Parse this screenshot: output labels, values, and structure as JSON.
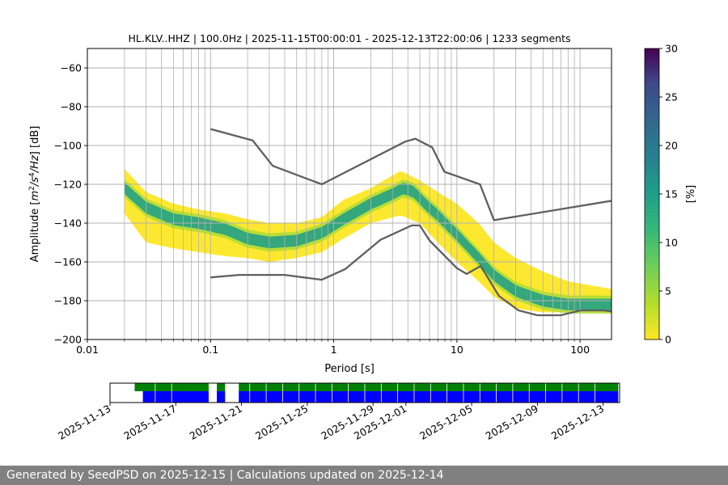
{
  "chart_data": [
    {
      "type": "heatmap",
      "title": "HL.KLV..HHZ | 100.0Hz | 2025-11-15T00:00:01 - 2025-12-13T22:00:06 | 1233 segments",
      "xlabel": "Period [s]",
      "ylabel_parts": [
        "Amplitude [",
        "m",
        "2",
        "/",
        "s",
        "4",
        "/",
        "Hz",
        "] [dB]"
      ],
      "x_scale": "log",
      "xlim": [
        0.01,
        180
      ],
      "ylim": [
        -200,
        -50
      ],
      "x_ticks": [
        0.01,
        0.1,
        1,
        10,
        100
      ],
      "x_tick_labels": [
        "0.01",
        "0.1",
        "1",
        "10",
        "100"
      ],
      "y_ticks": [
        -200,
        -180,
        -160,
        -140,
        -120,
        -100,
        -80,
        -60
      ],
      "y_tick_labels": [
        "−200",
        "−180",
        "−160",
        "−140",
        "−120",
        "−100",
        "−80",
        "−60"
      ],
      "grid": true,
      "colorbar": {
        "label": "[%]",
        "min": 0,
        "max": 30,
        "ticks": [
          0,
          5,
          10,
          15,
          20,
          25,
          30
        ],
        "tick_labels": [
          "0",
          "5",
          "10",
          "15",
          "20",
          "25",
          "30"
        ],
        "colormap": "viridis_r"
      },
      "mode_curve": {
        "x": [
          0.02,
          0.03,
          0.05,
          0.08,
          0.13,
          0.2,
          0.3,
          0.5,
          0.8,
          1.2,
          2,
          3,
          3.7,
          4.5,
          5.5,
          7,
          10,
          15,
          20,
          30,
          50,
          80,
          120,
          180
        ],
        "y": [
          -122,
          -132,
          -138,
          -140,
          -143,
          -148,
          -150,
          -149,
          -145,
          -138,
          -130,
          -125,
          -122,
          -124,
          -130,
          -136,
          -146,
          -158,
          -167,
          -175,
          -180,
          -182,
          -182,
          -182
        ]
      },
      "band_upper": {
        "x": [
          0.02,
          0.03,
          0.05,
          0.08,
          0.13,
          0.2,
          0.3,
          0.5,
          0.8,
          1.2,
          2,
          3.5,
          5,
          7,
          10,
          15,
          20,
          30,
          50,
          80,
          120,
          180
        ],
        "y": [
          -112,
          -124,
          -130,
          -133,
          -135,
          -138,
          -140,
          -140,
          -137,
          -128,
          -122,
          -113,
          -118,
          -124,
          -130,
          -140,
          -150,
          -158,
          -165,
          -170,
          -172,
          -174
        ]
      },
      "band_lower": {
        "x": [
          0.02,
          0.03,
          0.05,
          0.08,
          0.13,
          0.2,
          0.3,
          0.5,
          0.8,
          1.2,
          2,
          3.5,
          5,
          7,
          10,
          15,
          20,
          30,
          50,
          80,
          120,
          180
        ],
        "y": [
          -135,
          -150,
          -153,
          -155,
          -157,
          -158,
          -160,
          -158,
          -155,
          -148,
          -140,
          -136,
          -140,
          -150,
          -160,
          -170,
          -178,
          -184,
          -186,
          -186,
          -186,
          -186
        ]
      },
      "noise_model_high": {
        "x": [
          0.1,
          0.22,
          0.32,
          0.8,
          3.8,
          4.6,
          6.3,
          7.9,
          15.4,
          20,
          180
        ],
        "y": [
          -91.5,
          -97.4,
          -110.5,
          -120,
          -98,
          -96.5,
          -101,
          -113.5,
          -120,
          -138.5,
          -128.5
        ]
      },
      "noise_model_low": {
        "x": [
          0.1,
          0.17,
          0.4,
          0.8,
          1.24,
          2.4,
          4.3,
          5,
          6,
          10,
          12,
          15.6,
          21.9,
          31.6,
          45,
          70,
          101,
          154,
          180
        ],
        "y": [
          -168,
          -166.7,
          -166.7,
          -169.2,
          -163.7,
          -148.6,
          -141.2,
          -141.2,
          -149,
          -163.2,
          -166.2,
          -162.1,
          -177.5,
          -185,
          -187.5,
          -187.5,
          -185,
          -185,
          -185.5
        ]
      },
      "noise_model_color": "#5f5f5f",
      "heatmap_high_color": "#fde725",
      "heatmap_mode_color": "#26a185"
    },
    {
      "type": "timeline",
      "x_ticks": [
        "2025-11-13",
        "2025-11-17",
        "2025-11-21",
        "2025-11-25",
        "2025-11-29",
        "2025-12-01",
        "2025-12-05",
        "2025-12-09",
        "2025-12-13"
      ],
      "range_start": "2025-11-13",
      "range_end": "2025-12-14",
      "rows": [
        {
          "color": "#008000",
          "intervals": [
            [
              "2025-11-14T12:00",
              "2025-11-19T00:00"
            ],
            [
              "2025-11-19T12:00",
              "2025-11-20T00:00"
            ],
            [
              "2025-11-20T20:00",
              "2025-12-13T22:00"
            ]
          ]
        },
        {
          "color": "#0000ff",
          "intervals": [
            [
              "2025-11-15T00:00",
              "2025-11-19T00:00"
            ],
            [
              "2025-11-19T12:00",
              "2025-11-20T00:00"
            ],
            [
              "2025-11-20T20:00",
              "2025-12-13T22:00"
            ]
          ]
        }
      ],
      "gap_ticks": [
        "2025-11-15T18:00",
        "2025-11-16T18:00",
        "2025-11-21T12:00",
        "2025-11-22T12:00",
        "2025-11-23T12:00",
        "2025-11-24T12:00",
        "2025-11-25T12:00",
        "2025-11-26T12:00",
        "2025-11-27T12:00",
        "2025-11-28T12:00",
        "2025-11-29T12:00",
        "2025-11-30T12:00",
        "2025-12-01T12:00",
        "2025-12-02T12:00",
        "2025-12-03T12:00",
        "2025-12-04T12:00",
        "2025-12-05T12:00",
        "2025-12-06T12:00",
        "2025-12-07T12:00",
        "2025-12-08T12:00",
        "2025-12-09T12:00",
        "2025-12-10T12:00",
        "2025-12-11T12:00",
        "2025-12-12T12:00"
      ]
    }
  ],
  "footer": {
    "text": "Generated by SeedPSD on 2025-12-15 | Calculations updated on 2025-12-14"
  }
}
